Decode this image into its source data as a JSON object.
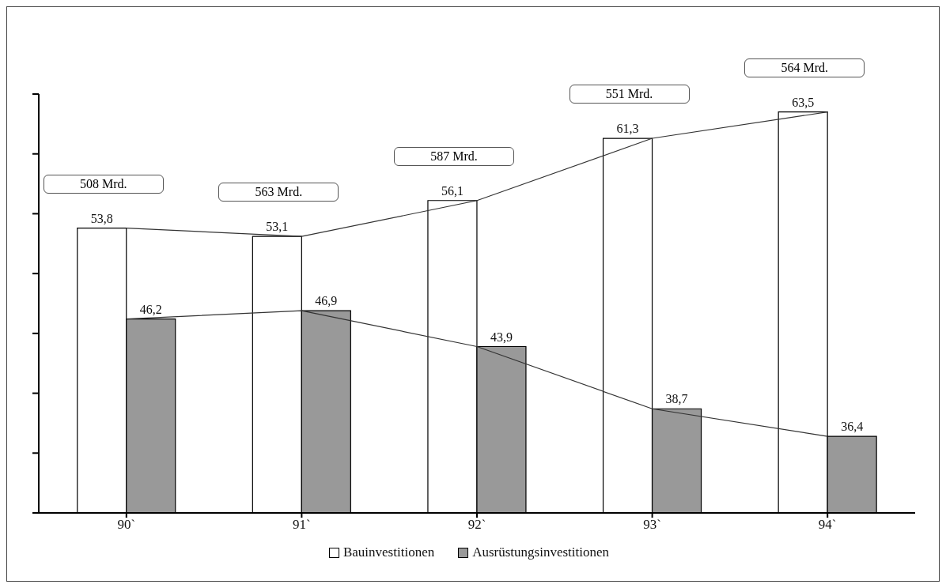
{
  "chart_data": {
    "type": "bar",
    "categories": [
      "90`",
      "91`",
      "92`",
      "93`",
      "94`"
    ],
    "series": [
      {
        "name": "Bauinvestitionen",
        "color": "#ffffff",
        "values": [
          53.8,
          53.1,
          56.1,
          61.3,
          63.5
        ],
        "value_labels": [
          "53,8",
          "53,1",
          "56,1",
          "61,3",
          "63,5"
        ]
      },
      {
        "name": "Ausrüstungsinvestitionen",
        "color": "#999999",
        "values": [
          46.2,
          46.9,
          43.9,
          38.7,
          36.4
        ],
        "value_labels": [
          "46,2",
          "46,9",
          "43,9",
          "38,7",
          "36,4"
        ]
      },
      {
        "type": "line",
        "color": "#333333",
        "values": [
          53.8,
          53.1,
          56.1,
          61.3,
          63.5
        ]
      },
      {
        "type": "line",
        "color": "#333333",
        "values": [
          46.2,
          46.9,
          43.9,
          38.7,
          36.4
        ]
      }
    ],
    "annotations": [
      "508 Mrd.",
      "563 Mrd.",
      "587 Mrd.",
      "551 Mrd.",
      "564 Mrd."
    ],
    "ylim": [
      30,
      65
    ],
    "yticks": [
      {
        "value": 30,
        "label": null
      },
      {
        "value": 35,
        "label": null
      },
      {
        "value": 40,
        "label": null
      },
      {
        "value": 45,
        "label": null
      },
      {
        "value": 50,
        "label": null
      },
      {
        "value": 55,
        "label": null
      },
      {
        "value": 60,
        "label": null
      },
      {
        "value": 65,
        "label": null
      }
    ],
    "grid": false,
    "legend": "bottom",
    "marker": "none",
    "line_style": "solid"
  }
}
